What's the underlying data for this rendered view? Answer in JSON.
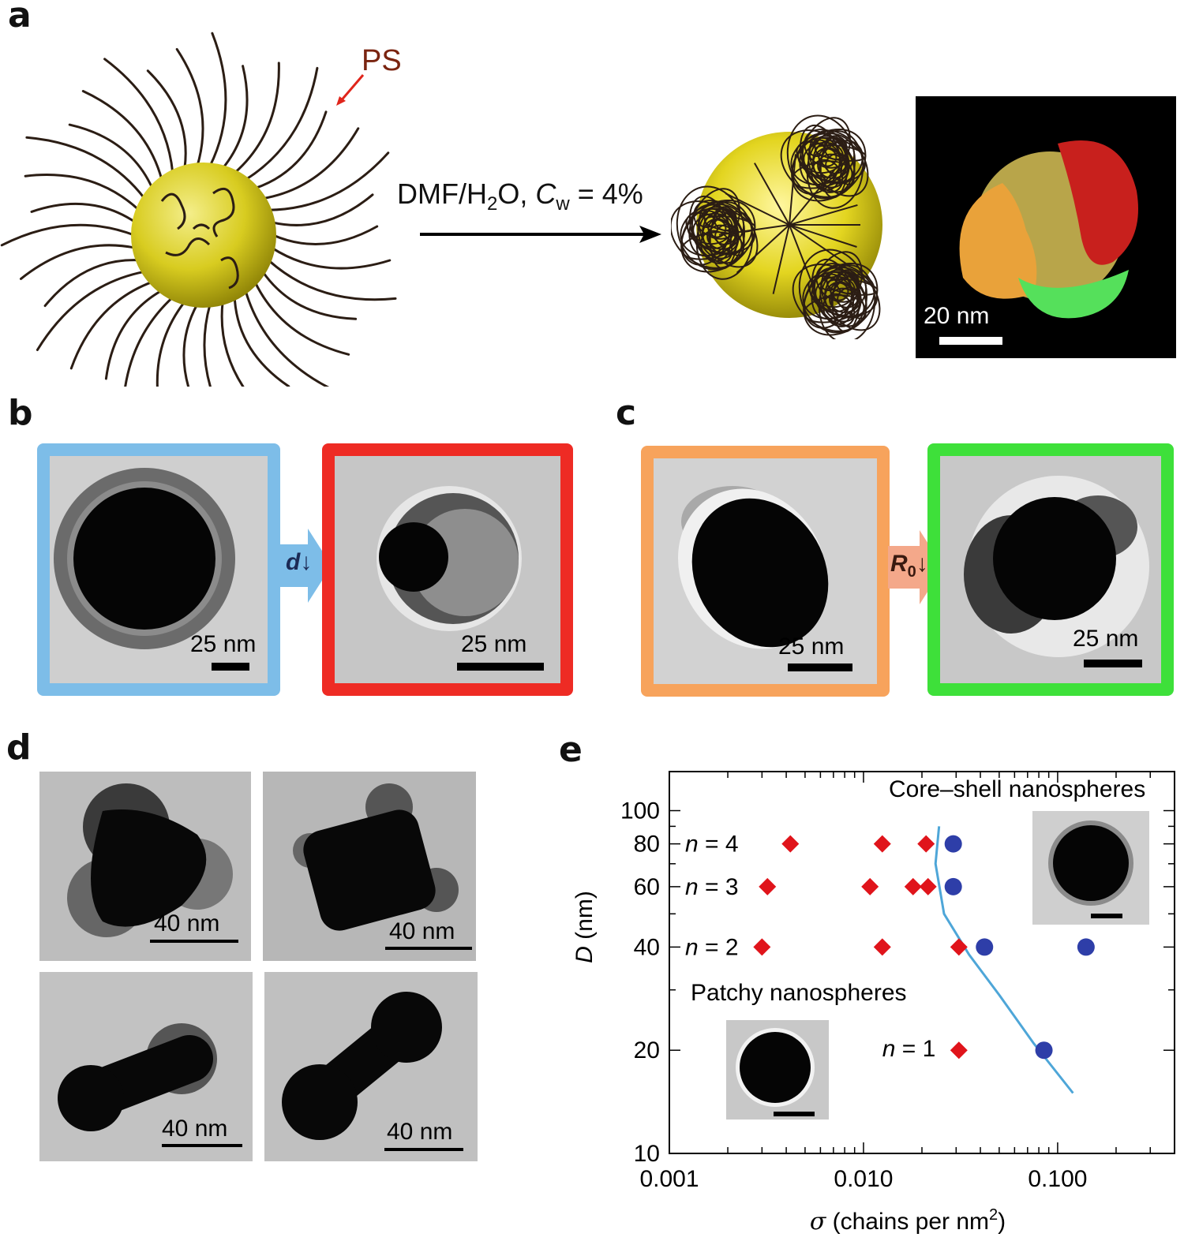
{
  "panels": {
    "a": {
      "label": "a",
      "ps_label": "PS",
      "condition": "DMF/H",
      "condition_sub": "2",
      "condition_mid": "O, ",
      "condition_var": "C",
      "condition_var_sub": "w",
      "condition_end": " = 4%",
      "scale": "20 nm"
    },
    "b": {
      "label": "b",
      "arrow_var": "d",
      "scale_left": "25 nm",
      "scale_right": "25 nm"
    },
    "c": {
      "label": "c",
      "arrow_var": "R",
      "arrow_sub": "0",
      "scale_left": "25 nm",
      "scale_right": "25 nm"
    },
    "d": {
      "label": "d",
      "scales": [
        "40 nm",
        "40 nm",
        "40 nm",
        "40 nm"
      ]
    },
    "e": {
      "label": "e"
    }
  },
  "colors": {
    "frame_blue": "#7dbde8",
    "frame_red": "#ee2b24",
    "frame_orange": "#f7a35c",
    "frame_green": "#3ee03a",
    "diamond": "#e0141b",
    "circle": "#2e3ea8",
    "curve": "#4ea6d8",
    "gold": "#d8cc20"
  },
  "chart_data": {
    "type": "scatter",
    "xscale": "log",
    "yscale": "log",
    "xlim": [
      0.001,
      0.4
    ],
    "ylim": [
      10,
      130
    ],
    "xticks": [
      "0.001",
      "0.010",
      "0.100"
    ],
    "yticks": [
      "10",
      "20",
      "40",
      "60",
      "80",
      "100"
    ],
    "xlabel_var": "σ",
    "xlabel_text": " (chains per nm",
    "xlabel_sup": "2",
    "xlabel_end": ")",
    "ylabel_var": "D",
    "ylabel_text": " (nm)",
    "region_labels": [
      "Core–shell nanospheres",
      "Patchy nanospheres"
    ],
    "row_labels": [
      {
        "text": "n = 4",
        "y": 80
      },
      {
        "text": "n = 3",
        "y": 60
      },
      {
        "text": "n = 2",
        "y": 40
      },
      {
        "text": "n = 1",
        "y": 20
      }
    ],
    "series": [
      {
        "marker": "diamond",
        "points": [
          {
            "x": 0.0042,
            "y": 80
          },
          {
            "x": 0.0125,
            "y": 80
          },
          {
            "x": 0.021,
            "y": 80
          },
          {
            "x": 0.0032,
            "y": 60
          },
          {
            "x": 0.0108,
            "y": 60
          },
          {
            "x": 0.018,
            "y": 60
          },
          {
            "x": 0.0215,
            "y": 60
          },
          {
            "x": 0.003,
            "y": 40
          },
          {
            "x": 0.0125,
            "y": 40
          },
          {
            "x": 0.031,
            "y": 40
          },
          {
            "x": 0.031,
            "y": 20
          }
        ]
      },
      {
        "marker": "circle",
        "points": [
          {
            "x": 0.029,
            "y": 80
          },
          {
            "x": 0.029,
            "y": 60
          },
          {
            "x": 0.042,
            "y": 40
          },
          {
            "x": 0.14,
            "y": 40
          },
          {
            "x": 0.085,
            "y": 20
          }
        ]
      },
      {
        "type": "line",
        "points": [
          {
            "x": 0.0245,
            "y": 90
          },
          {
            "x": 0.0235,
            "y": 70
          },
          {
            "x": 0.026,
            "y": 50
          },
          {
            "x": 0.035,
            "y": 38
          },
          {
            "x": 0.05,
            "y": 29
          },
          {
            "x": 0.075,
            "y": 21
          },
          {
            "x": 0.12,
            "y": 15
          }
        ]
      }
    ]
  }
}
